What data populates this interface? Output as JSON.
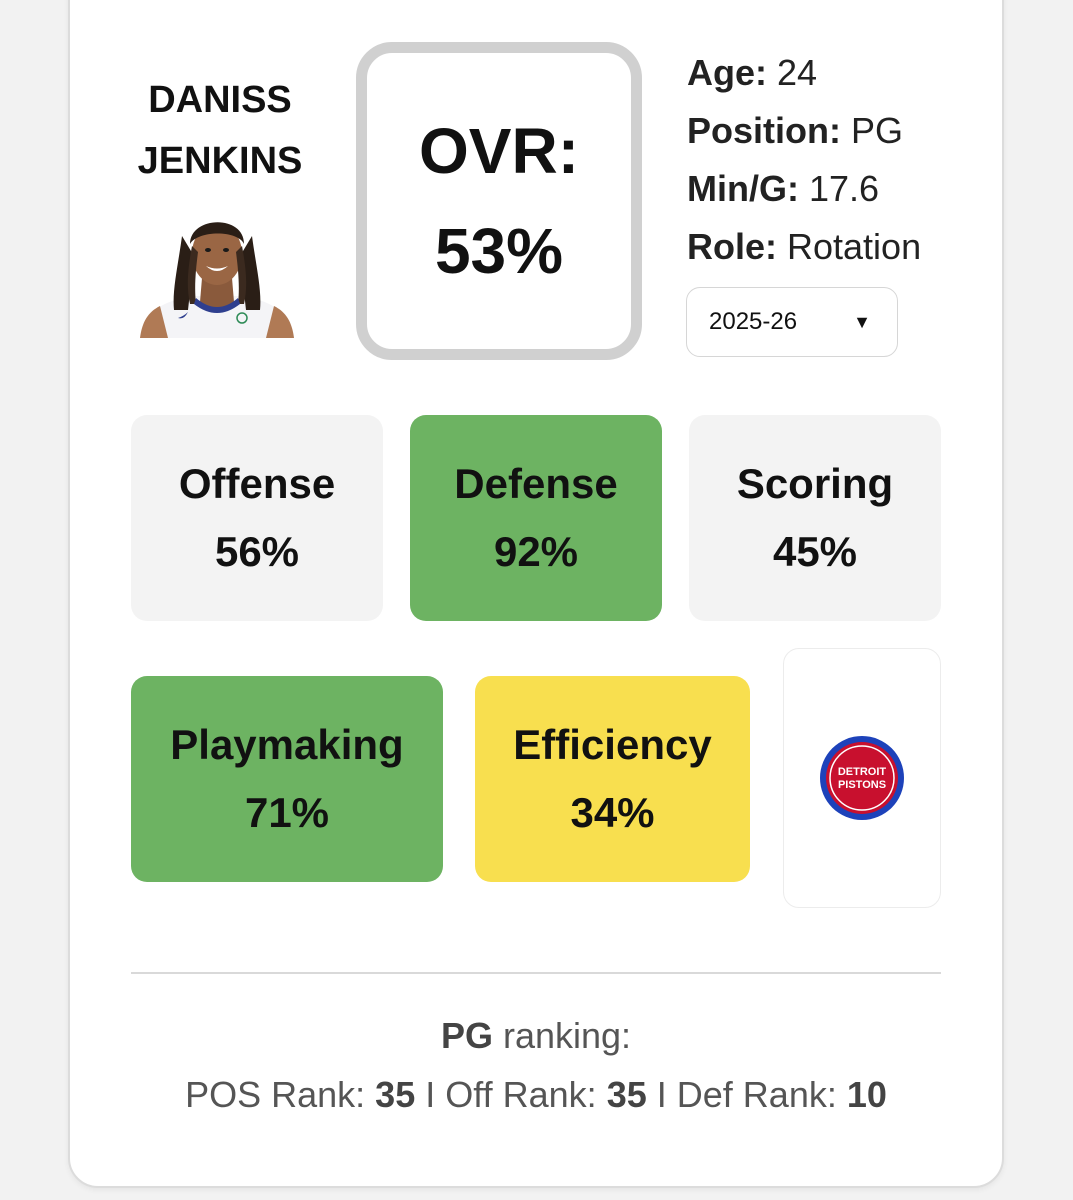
{
  "player": {
    "first_name": "DANISS",
    "last_name": "JENKINS"
  },
  "overall": {
    "label": "OVR:",
    "value": "53%"
  },
  "info": {
    "age_label": "Age:",
    "age": "24",
    "position_label": "Position:",
    "position": "PG",
    "min_label": "Min/G:",
    "min": "17.6",
    "role_label": "Role:",
    "role": "Rotation"
  },
  "season_select": {
    "value": "2025-26"
  },
  "ratings": {
    "offense": {
      "label": "Offense",
      "value": "56%",
      "color": "#f3f3f3"
    },
    "defense": {
      "label": "Defense",
      "value": "92%",
      "color": "#6db362"
    },
    "scoring": {
      "label": "Scoring",
      "value": "45%",
      "color": "#f3f3f3"
    },
    "playmaking": {
      "label": "Playmaking",
      "value": "71%",
      "color": "#6db362"
    },
    "efficiency": {
      "label": "Efficiency",
      "value": "34%",
      "color": "#f8df4f"
    }
  },
  "team": {
    "logo_icon": "detroit-pistons-logo",
    "logo_line1": "DETROIT",
    "logo_line2": "PISTONS"
  },
  "ranking": {
    "position": "PG",
    "title_suffix": "ranking:",
    "pos_rank_label": "POS Rank:",
    "pos_rank": "35",
    "off_rank_label": "Off Rank:",
    "off_rank": "35",
    "def_rank_label": "Def Rank:",
    "def_rank": "10",
    "separator": "I"
  }
}
